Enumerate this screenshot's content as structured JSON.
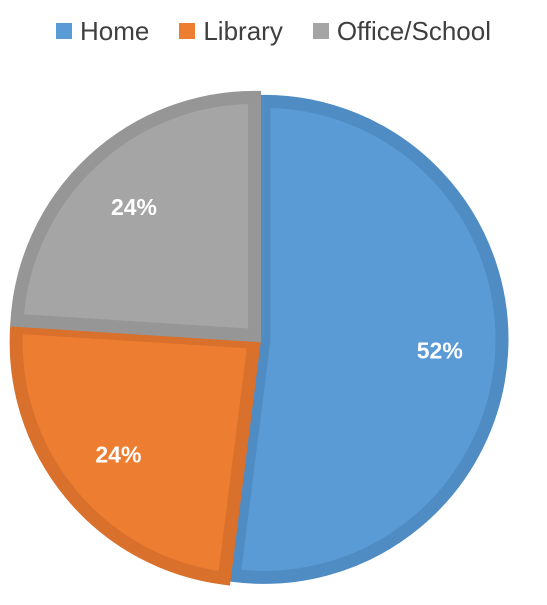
{
  "chart_data": {
    "type": "pie",
    "categories": [
      "Home",
      "Library",
      "Office/School"
    ],
    "values": [
      52,
      24,
      24
    ],
    "labels": [
      "52%",
      "24%",
      "24%"
    ],
    "colors": [
      "#5b9bd5",
      "#ed7d31",
      "#a5a5a5"
    ],
    "border_colors": [
      "#4f8cc4",
      "#d9702b",
      "#969696"
    ],
    "legend_position": "top",
    "start": "12 o'clock, clockwise"
  }
}
